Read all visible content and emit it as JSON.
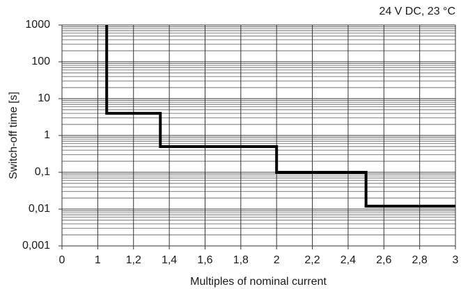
{
  "chart_data": {
    "type": "line",
    "annotation": "24 V DC, 23 °C",
    "xlabel": "Multiples of nominal current",
    "ylabel": "Switch-off time [s]",
    "xlim": [
      0,
      3
    ],
    "xticks": [
      0,
      1,
      {
        "value": 1.2,
        "label": "1,2"
      },
      {
        "value": 1.4,
        "label": "1,4"
      },
      {
        "value": 1.6,
        "label": "1,6"
      },
      {
        "value": 1.8,
        "label": "1,8"
      },
      2,
      {
        "value": 2.2,
        "label": "2,2"
      },
      {
        "value": 2.4,
        "label": "2,4"
      },
      {
        "value": 2.6,
        "label": "2,6"
      },
      {
        "value": 2.8,
        "label": "2,8"
      },
      3
    ],
    "ylim": [
      0.001,
      1000
    ],
    "yticks": [
      {
        "value": 0.001,
        "label": "0,001"
      },
      {
        "value": 0.01,
        "label": "0,01"
      },
      {
        "value": 0.1,
        "label": "0,1"
      },
      1,
      10,
      100,
      1000
    ],
    "log_y": true,
    "grid": true,
    "minor_grid": true,
    "series": [
      {
        "color": "#000000",
        "x": [
          1.05,
          1.05,
          1.35,
          1.35,
          2,
          2,
          2.5,
          2.5,
          3
        ],
        "values": [
          1000,
          4,
          4,
          0.5,
          0.5,
          0.1,
          0.1,
          0.012,
          0.012
        ]
      }
    ]
  }
}
